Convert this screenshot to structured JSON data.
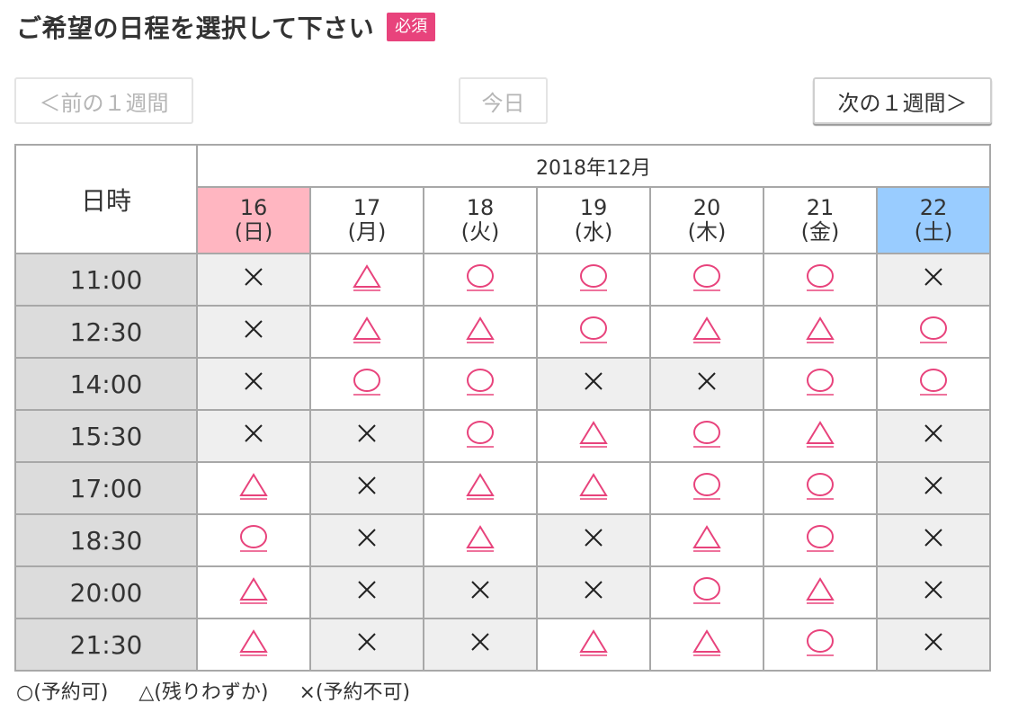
{
  "header": {
    "title": "ご希望の日程を選択して下さい",
    "required_badge": "必須"
  },
  "nav": {
    "prev_label": "＜前の１週間",
    "today_label": "今日",
    "next_label": "次の１週間＞"
  },
  "calendar": {
    "datetime_header": "日時",
    "month_label": "2018年12月",
    "days": [
      {
        "date": "16",
        "weekday": "(日)",
        "type": "sun"
      },
      {
        "date": "17",
        "weekday": "(月)",
        "type": "weekday"
      },
      {
        "date": "18",
        "weekday": "(火)",
        "type": "weekday"
      },
      {
        "date": "19",
        "weekday": "(水)",
        "type": "weekday"
      },
      {
        "date": "20",
        "weekday": "(木)",
        "type": "weekday"
      },
      {
        "date": "21",
        "weekday": "(金)",
        "type": "weekday"
      },
      {
        "date": "22",
        "weekday": "(土)",
        "type": "sat"
      }
    ],
    "rows": [
      {
        "time": "11:00",
        "slots": [
          "x",
          "t",
          "o",
          "o",
          "o",
          "o",
          "x"
        ]
      },
      {
        "time": "12:30",
        "slots": [
          "x",
          "t",
          "t",
          "o",
          "t",
          "t",
          "o"
        ]
      },
      {
        "time": "14:00",
        "slots": [
          "x",
          "o",
          "o",
          "x",
          "x",
          "o",
          "o"
        ]
      },
      {
        "time": "15:30",
        "slots": [
          "x",
          "x",
          "o",
          "t",
          "o",
          "t",
          "x"
        ]
      },
      {
        "time": "17:00",
        "slots": [
          "t",
          "x",
          "t",
          "t",
          "o",
          "o",
          "x"
        ]
      },
      {
        "time": "18:30",
        "slots": [
          "o",
          "x",
          "t",
          "x",
          "t",
          "o",
          "x"
        ]
      },
      {
        "time": "20:00",
        "slots": [
          "t",
          "x",
          "x",
          "x",
          "o",
          "t",
          "x"
        ]
      },
      {
        "time": "21:30",
        "slots": [
          "t",
          "x",
          "x",
          "t",
          "t",
          "o",
          "x"
        ]
      }
    ]
  },
  "legend": {
    "available": "○(予約可)",
    "few_left": "△(残りわずか)",
    "unavailable": "×(予約不可)"
  },
  "colors": {
    "accent": "#e8437c",
    "sunday_bg": "#ffb6c1",
    "saturday_bg": "#99ccff",
    "time_bg": "#dcdcdc",
    "full_bg": "#efefef"
  }
}
